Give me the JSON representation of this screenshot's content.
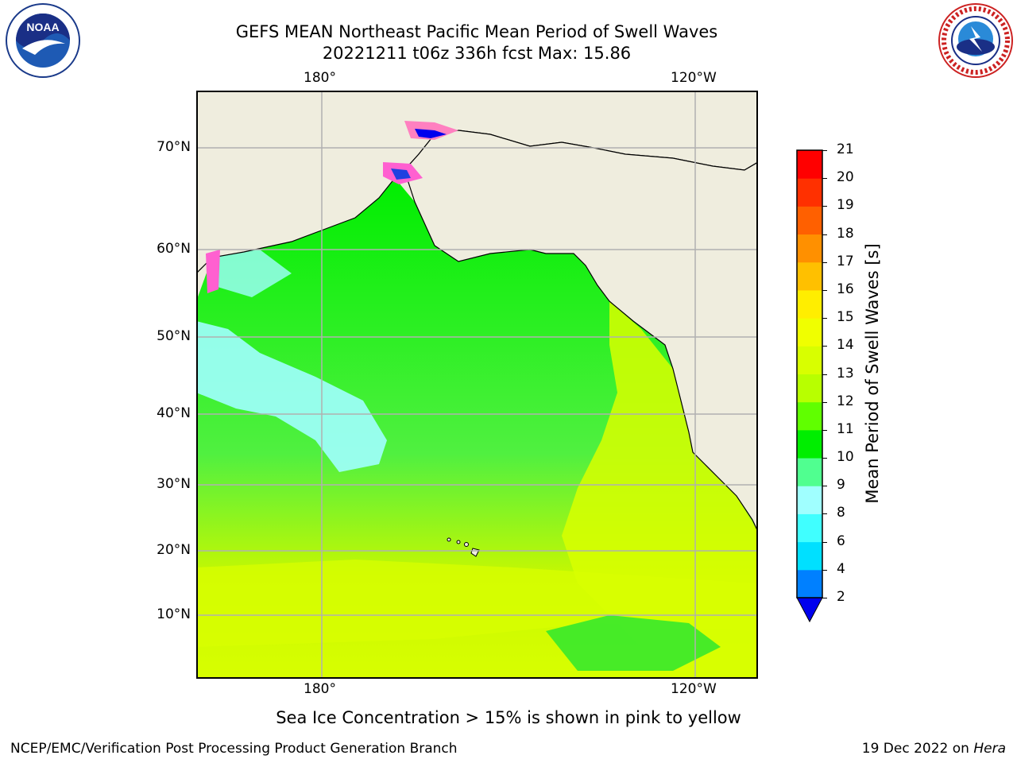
{
  "header": {
    "title_line1": "GEFS MEAN Northeast Pacific Mean Period of Swell Waves",
    "title_line2": "20221211 t06z 336h fcst   Max: 15.86"
  },
  "logos": {
    "left": "NOAA",
    "right_text": "NATIONAL WEATHER SERVICE"
  },
  "map": {
    "longitude_labels": [
      "180°",
      "120°W"
    ],
    "latitude_labels": [
      "70°N",
      "60°N",
      "50°N",
      "40°N",
      "30°N",
      "20°N",
      "10°N"
    ],
    "land_color": "#efedde",
    "grid_color": "#b0b0b0"
  },
  "colorbar": {
    "label": "Mean Period of Swell Waves [s]",
    "ticks": [
      "2",
      "4",
      "6",
      "8",
      "9",
      "10",
      "11",
      "12",
      "13",
      "14",
      "15",
      "16",
      "17",
      "18",
      "19",
      "20",
      "21"
    ],
    "colors": [
      "#0080ff",
      "#00e0ff",
      "#40ffff",
      "#a0ffff",
      "#50ff90",
      "#00ee00",
      "#60ff00",
      "#b8ff00",
      "#d8ff00",
      "#f0ff00",
      "#ffee00",
      "#ffc000",
      "#ff9000",
      "#ff6000",
      "#ff3000",
      "#ff0000"
    ],
    "extend_color": "#0000ee"
  },
  "caption": "Sea Ice Concentration > 15% is shown in pink to yellow",
  "footer": {
    "left": "NCEP/EMC/Verification Post Processing Product Generation Branch",
    "right_date": "19 Dec 2022 on",
    "right_system": "Hera"
  }
}
